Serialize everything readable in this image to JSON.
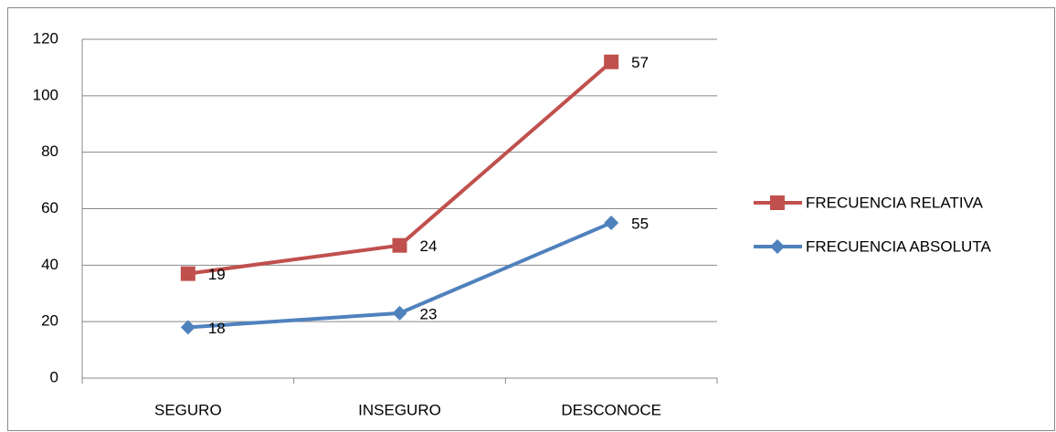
{
  "chart_data": {
    "type": "line",
    "stacked": true,
    "categories": [
      "SEGURO",
      "INSEGURO",
      "DESCONOCE"
    ],
    "series": [
      {
        "name": "FRECUENCIA ABSOLUTA",
        "color": "#4f81bd",
        "marker": "diamond",
        "values": [
          18,
          23,
          55
        ]
      },
      {
        "name": "FRECUENCIA RELATIVA",
        "color": "#c0504d",
        "marker": "square",
        "values": [
          19,
          24,
          57
        ]
      }
    ],
    "ylim": [
      0,
      120
    ],
    "yticks": [
      0,
      20,
      40,
      60,
      80,
      100,
      120
    ],
    "grid": true,
    "legend": "right"
  }
}
